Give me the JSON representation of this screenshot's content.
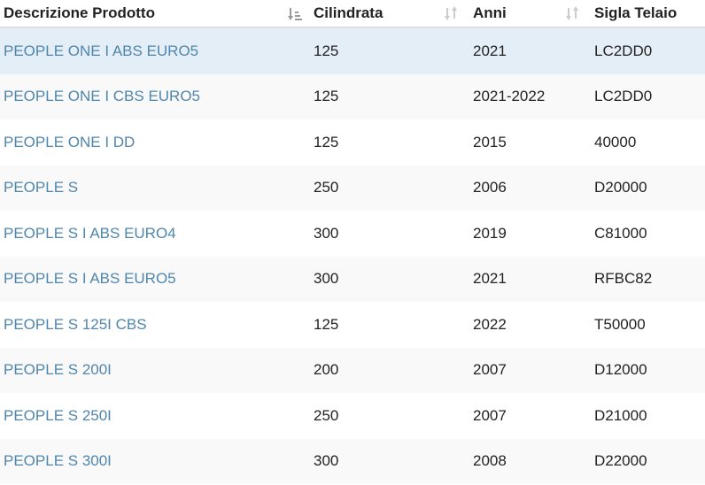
{
  "table": {
    "headers": {
      "description": "Descrizione Prodotto",
      "displacement": "Cilindrata",
      "years": "Anni",
      "frame_code": "Sigla Telaio"
    },
    "sort": {
      "active_column": "description",
      "active_icon": "sort-amount-down-icon",
      "idle_icon": "sort-both-icon"
    },
    "rows": [
      {
        "description": "PEOPLE ONE I ABS EURO5",
        "displacement": "125",
        "years": "2021",
        "frame_code": "LC2DD0",
        "selected": true
      },
      {
        "description": "PEOPLE ONE I CBS EURO5",
        "displacement": "125",
        "years": "2021-2022",
        "frame_code": "LC2DD0"
      },
      {
        "description": "PEOPLE ONE I DD",
        "displacement": "125",
        "years": "2015",
        "frame_code": "40000"
      },
      {
        "description": "PEOPLE S",
        "displacement": "250",
        "years": "2006",
        "frame_code": "D20000"
      },
      {
        "description": "PEOPLE S I ABS EURO4",
        "displacement": "300",
        "years": "2019",
        "frame_code": "C81000"
      },
      {
        "description": "PEOPLE S I ABS EURO5",
        "displacement": "300",
        "years": "2021",
        "frame_code": "RFBC82"
      },
      {
        "description": "PEOPLE S 125I CBS",
        "displacement": "125",
        "years": "2022",
        "frame_code": "T50000"
      },
      {
        "description": "PEOPLE S 200I",
        "displacement": "200",
        "years": "2007",
        "frame_code": "D12000"
      },
      {
        "description": "PEOPLE S 250I",
        "displacement": "250",
        "years": "2007",
        "frame_code": "D21000"
      },
      {
        "description": "PEOPLE S 300I",
        "displacement": "300",
        "years": "2008",
        "frame_code": "D22000"
      }
    ],
    "colors": {
      "link": "#4f86ad",
      "selected_row": "#e4eef6",
      "striped_row": "#f9f9f9"
    }
  }
}
